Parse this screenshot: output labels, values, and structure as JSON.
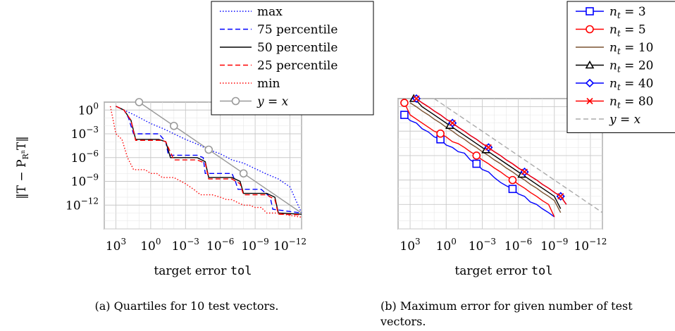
{
  "chart_data": [
    {
      "type": "line",
      "x_scale": "log-reversed",
      "y_scale": "log",
      "xlim": [
        10000,
        1e-13
      ],
      "ylim": [
        1e-15,
        10
      ],
      "xlabel": "target error",
      "xlabel_code": "tol",
      "ylabel": "‖T − P_{R^n}T‖",
      "x_ticks": [
        "10^3",
        "10^0",
        "10^-3",
        "10^-6",
        "10^-9",
        "10^-12"
      ],
      "y_ticks": [
        "10^0",
        "10^-3",
        "10^-6",
        "10^-9",
        "10^-12"
      ],
      "grid": true,
      "legend_position": "top-right",
      "caption": "(a) Quartiles for 10 test vectors.",
      "series": [
        {
          "name": "max",
          "color": "#0000ff",
          "dash": "dotted",
          "marker": "none",
          "x": [
            1000,
            200,
            20,
            1,
            0.1,
            0.01,
            0.001,
            0.0001,
            1e-05,
            1e-06,
            1e-07,
            1e-08,
            1e-09,
            1e-10,
            1e-11,
            1e-12,
            1e-13
          ],
          "y": [
            3,
            1,
            0.2,
            0.02,
            0.005,
            0.001,
            0.0002,
            5e-05,
            1e-05,
            3e-06,
            5e-07,
            2e-07,
            4e-08,
            8e-09,
            2e-09,
            2e-10,
            1e-13
          ]
        },
        {
          "name": "75 percentile",
          "color": "#0000ff",
          "dash": "dashed",
          "marker": "none",
          "x": [
            1000,
            200,
            80,
            50,
            30,
            0.2,
            0.05,
            0.03,
            0.0001,
            3e-05,
            2e-05,
            1e-07,
            5e-08,
            3e-08,
            3e-10,
            5e-11,
            3e-11,
            1e-13
          ],
          "y": [
            3,
            1,
            0.1,
            0.01,
            0.001,
            0.001,
            0.0001,
            2e-06,
            2e-06,
            1e-06,
            1e-08,
            1e-08,
            1e-09,
            1e-10,
            1e-10,
            1e-11,
            3e-13,
            1e-13
          ]
        },
        {
          "name": "50 percentile",
          "color": "#000000",
          "dash": "solid",
          "marker": "none",
          "x": [
            1000,
            200,
            50,
            20,
            0.2,
            0.05,
            0.02,
            0.0001,
            2e-05,
            1e-05,
            1e-07,
            2e-08,
            1e-08,
            1e-10,
            2e-11,
            1e-11,
            1e-13
          ],
          "y": [
            3,
            1,
            0.05,
            0.0002,
            0.0002,
            0.0001,
            1e-06,
            1e-06,
            3e-07,
            3e-09,
            3e-09,
            1e-09,
            3e-11,
            3e-11,
            1e-11,
            1e-13,
            7e-14
          ]
        },
        {
          "name": "25 percentile",
          "color": "#ff0000",
          "dash": "dashed",
          "marker": "none",
          "x": [
            1000,
            200,
            50,
            20,
            0.1,
            0.05,
            0.01,
            0.0001,
            2e-05,
            1e-05,
            1e-07,
            2e-08,
            1e-08,
            1e-10,
            2e-11,
            1e-11,
            1e-13
          ],
          "y": [
            3,
            1,
            0.05,
            0.00015,
            0.00015,
            0.0001,
            5e-07,
            5e-07,
            2e-07,
            2e-09,
            2e-09,
            5e-10,
            2e-11,
            2e-11,
            5e-12,
            7e-14,
            6e-14
          ]
        },
        {
          "name": "min",
          "color": "#ff0000",
          "dash": "dotted",
          "marker": "none",
          "x": [
            3000,
            1000,
            300,
            100,
            30,
            3,
            1,
            0.3,
            0.1,
            0.01,
            0.001,
            0.0002,
            5e-05,
            5e-06,
            1e-06,
            3e-07,
            1e-07,
            3e-08,
            1e-08,
            3e-09,
            1e-09,
            3e-10,
            1e-10,
            1e-11,
            1e-12,
            1e-13
          ],
          "y": [
            3,
            0.001,
            0.0002,
            1e-06,
            3e-08,
            3e-08,
            1e-08,
            1e-08,
            3e-09,
            3e-09,
            5e-10,
            1e-10,
            2e-11,
            2e-11,
            1e-11,
            5e-12,
            5e-12,
            2e-12,
            1e-12,
            1e-12,
            5e-13,
            5e-13,
            1e-13,
            1e-13,
            5e-14,
            3e-14
          ]
        },
        {
          "name": "y = x",
          "color": "#999999",
          "dash": "solid",
          "marker": "circle",
          "x": [
            10,
            1e-13
          ],
          "y": [
            10,
            1e-13
          ],
          "marker_x": [
            10,
            0.01,
            1e-05,
            1e-08
          ]
        }
      ]
    },
    {
      "type": "line",
      "x_scale": "log-reversed",
      "y_scale": "log",
      "xlim": [
        10000,
        1e-13
      ],
      "ylim": [
        1e-15,
        10
      ],
      "xlabel": "target error",
      "xlabel_code": "tol",
      "x_ticks": [
        "10^3",
        "10^0",
        "10^-3",
        "10^-6",
        "10^-9",
        "10^-12"
      ],
      "grid": true,
      "legend_position": "top-right",
      "caption_line1": "(b) Maximum error for given number of test",
      "caption_line2": "vectors.",
      "series": [
        {
          "name": "n_t = 3",
          "color": "#0000ff",
          "dash": "solid",
          "marker": "square",
          "x": [
            3000,
            1000,
            300,
            100,
            30,
            10,
            3,
            1,
            0.3,
            0.1,
            0.03,
            0.01,
            0.003,
            0.001,
            0.0003,
            0.0001,
            3e-05,
            1e-05,
            3e-06,
            1e-06,
            3e-07,
            1e-07,
            3e-08,
            1e-08,
            3e-09,
            1e-09
          ],
          "y": [
            0.1,
            0.02,
            0.01,
            0.002,
            0.0008,
            0.0002,
            0.0001,
            2e-05,
            1e-05,
            3e-06,
            2e-06,
            3e-07,
            1e-07,
            2e-08,
            1e-08,
            2e-09,
            5e-10,
            2e-10,
            8e-11,
            2e-11,
            1e-11,
            2e-12,
            1e-12,
            3e-13,
            1e-13,
            3e-14
          ],
          "marker_x": [
            3000,
            3,
            0.003,
            3e-06
          ]
        },
        {
          "name": "n_t = 5",
          "color": "#ff0000",
          "dash": "solid",
          "marker": "circle",
          "x": [
            3000,
            1000,
            300,
            100,
            30,
            10,
            3,
            1,
            0.3,
            0.1,
            0.03,
            0.01,
            0.003,
            0.001,
            0.0003,
            0.0001,
            3e-05,
            1e-05,
            3e-06,
            1e-06,
            3e-07,
            1e-07,
            3e-08,
            1e-08,
            3e-09,
            1e-09
          ],
          "y": [
            3,
            0.1,
            0.03,
            0.01,
            0.003,
            0.001,
            0.0005,
            0.0002,
            5e-05,
            3e-05,
            1e-05,
            3e-06,
            1e-06,
            3e-07,
            1e-07,
            3e-08,
            1e-08,
            3e-09,
            1e-09,
            3e-10,
            1e-10,
            3e-11,
            1e-11,
            3e-12,
            1e-12,
            3e-14
          ],
          "marker_x": [
            3000,
            3,
            0.003,
            3e-06
          ]
        },
        {
          "name": "n_t = 10",
          "color": "#7a5230",
          "dash": "solid",
          "marker": "none",
          "x": [
            1000,
            300,
            100,
            30,
            10,
            3,
            1,
            0.3,
            0.1,
            0.03,
            0.01,
            0.003,
            0.001,
            0.0003,
            0.0001,
            3e-05,
            1e-05,
            3e-06,
            1e-06,
            3e-07,
            1e-07,
            3e-08,
            1e-08,
            3e-09,
            1e-09,
            3e-10
          ],
          "y": [
            3,
            1,
            0.3,
            0.1,
            0.03,
            0.01,
            0.003,
            0.001,
            0.0003,
            0.0001,
            3e-05,
            1e-05,
            3e-06,
            1e-06,
            3e-07,
            1e-07,
            3e-08,
            1e-08,
            3e-09,
            1e-09,
            3e-10,
            1e-10,
            3e-11,
            1e-11,
            3e-12,
            1e-13
          ]
        },
        {
          "name": "n_t = 20",
          "color": "#000000",
          "dash": "solid",
          "marker": "triangle",
          "x": [
            500,
            200,
            100,
            30,
            10,
            3,
            1,
            0.3,
            0.1,
            0.03,
            0.01,
            0.003,
            0.001,
            0.0003,
            0.0001,
            3e-05,
            1e-05,
            3e-06,
            1e-06,
            3e-07,
            1e-07,
            3e-08,
            1e-08,
            3e-09,
            1e-09,
            3e-10
          ],
          "y": [
            10,
            3,
            1,
            0.3,
            0.1,
            0.03,
            0.01,
            0.003,
            0.001,
            0.0003,
            0.0001,
            3e-05,
            1e-05,
            3e-06,
            1e-06,
            3e-07,
            1e-07,
            3e-08,
            1e-08,
            3e-09,
            1e-09,
            3e-10,
            1e-10,
            3e-11,
            1e-11,
            3e-13
          ],
          "marker_x": [
            500,
            0.5,
            0.0005,
            5e-07
          ]
        },
        {
          "name": "n_t = 40",
          "color": "#0000ff",
          "dash": "solid",
          "marker": "diamond",
          "x": [
            300,
            100,
            30,
            10,
            3,
            1,
            0.3,
            0.1,
            0.03,
            0.01,
            0.003,
            0.001,
            0.0003,
            0.0001,
            3e-05,
            1e-05,
            3e-06,
            1e-06,
            3e-07,
            1e-07,
            3e-08,
            1e-08,
            3e-09,
            1e-09,
            3e-10,
            1e-10
          ],
          "y": [
            10,
            3,
            1,
            0.3,
            0.1,
            0.03,
            0.01,
            0.003,
            0.001,
            0.0003,
            0.0001,
            3e-05,
            1e-05,
            3e-06,
            1e-06,
            3e-07,
            1e-07,
            3e-08,
            1e-08,
            3e-09,
            1e-09,
            3e-10,
            1e-10,
            3e-11,
            1e-11,
            1e-12
          ],
          "marker_x": [
            300,
            0.3,
            0.0003,
            3e-07,
            3e-10
          ]
        },
        {
          "name": "n_t = 80",
          "color": "#ff0000",
          "dash": "solid",
          "marker": "cross",
          "x": [
            300,
            100,
            30,
            10,
            3,
            1,
            0.3,
            0.1,
            0.03,
            0.01,
            0.003,
            0.001,
            0.0003,
            0.0001,
            3e-05,
            1e-05,
            3e-06,
            1e-06,
            3e-07,
            1e-07,
            3e-08,
            1e-08,
            3e-09,
            1e-09,
            3e-10,
            1e-10
          ],
          "y": [
            10,
            3,
            1,
            0.3,
            0.1,
            0.03,
            0.01,
            0.003,
            0.001,
            0.0003,
            0.0001,
            3e-05,
            1e-05,
            3e-06,
            1e-06,
            3e-07,
            1e-07,
            3e-08,
            1e-08,
            3e-09,
            1e-09,
            3e-10,
            1e-10,
            3e-11,
            1e-11,
            1e-12
          ],
          "marker_x": [
            300,
            0.3,
            0.0003,
            3e-07,
            3e-10
          ]
        },
        {
          "name": "y = x",
          "color": "#aaaaaa",
          "dash": "dashed",
          "marker": "none",
          "x": [
            10,
            1e-13
          ],
          "y": [
            10,
            1e-13
          ]
        }
      ]
    }
  ]
}
